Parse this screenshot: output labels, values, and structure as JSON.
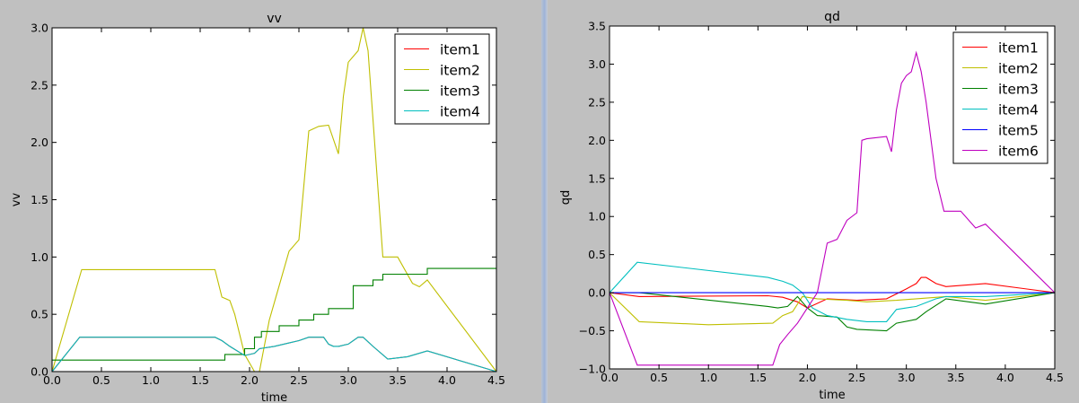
{
  "charts": [
    {
      "type": "line",
      "title": "vv",
      "xlabel": "time",
      "ylabel": "vv",
      "xlim": [
        0,
        4.5
      ],
      "ylim": [
        0,
        3.0
      ],
      "xticks": [
        "0.0",
        "0.5",
        "1.0",
        "1.5",
        "2.0",
        "2.5",
        "3.0",
        "3.5",
        "4.0",
        "4.5"
      ],
      "yticks": [
        "0.0",
        "0.5",
        "1.0",
        "1.5",
        "2.0",
        "2.5",
        "3.0"
      ],
      "legend_position": "top-right",
      "series": [
        {
          "name": "item1",
          "color": "#ff0000",
          "x": [
            0,
            0.28,
            1.65,
            1.72,
            1.8,
            1.95,
            2.05,
            2.1,
            2.25,
            2.5,
            2.6,
            2.75,
            2.8,
            2.85,
            2.9,
            3.0,
            3.1,
            3.15,
            3.25,
            3.4,
            3.6,
            3.8,
            4.5
          ],
          "y": [
            0,
            0.3,
            0.3,
            0.27,
            0.22,
            0.14,
            0.16,
            0.2,
            0.22,
            0.27,
            0.3,
            0.3,
            0.24,
            0.22,
            0.22,
            0.24,
            0.3,
            0.3,
            0.22,
            0.11,
            0.13,
            0.18,
            0
          ]
        },
        {
          "name": "item2",
          "color": "#bfbf00",
          "x": [
            0,
            0.3,
            1.65,
            1.72,
            1.8,
            1.85,
            1.95,
            2.05,
            2.1,
            2.2,
            2.3,
            2.4,
            2.5,
            2.6,
            2.7,
            2.8,
            2.9,
            2.95,
            3.0,
            3.05,
            3.1,
            3.15,
            3.2,
            3.25,
            3.35,
            3.5,
            3.65,
            3.72,
            3.8,
            4.5
          ],
          "y": [
            0,
            0.89,
            0.89,
            0.65,
            0.62,
            0.5,
            0.15,
            0,
            0,
            0.45,
            0.75,
            1.05,
            1.15,
            2.1,
            2.14,
            2.15,
            1.9,
            2.4,
            2.7,
            2.75,
            2.8,
            3.0,
            2.8,
            2.2,
            1.0,
            1.0,
            0.77,
            0.74,
            0.8,
            0
          ]
        },
        {
          "name": "item3",
          "color": "#008000",
          "x": [
            0,
            1.75,
            1.75,
            1.95,
            1.95,
            2.05,
            2.05,
            2.12,
            2.12,
            2.3,
            2.3,
            2.5,
            2.5,
            2.65,
            2.65,
            2.8,
            2.8,
            3.05,
            3.05,
            3.25,
            3.25,
            3.35,
            3.35,
            3.8,
            3.8,
            4.5
          ],
          "y": [
            0.1,
            0.1,
            0.15,
            0.15,
            0.2,
            0.2,
            0.3,
            0.3,
            0.35,
            0.35,
            0.4,
            0.4,
            0.45,
            0.45,
            0.5,
            0.5,
            0.55,
            0.55,
            0.75,
            0.75,
            0.8,
            0.8,
            0.85,
            0.85,
            0.9,
            0.9
          ]
        },
        {
          "name": "item4",
          "color": "#00bfbf",
          "x": [
            0,
            0.28,
            1.65,
            1.72,
            1.8,
            1.95,
            2.05,
            2.1,
            2.25,
            2.5,
            2.6,
            2.75,
            2.8,
            2.85,
            2.9,
            3.0,
            3.1,
            3.15,
            3.25,
            3.4,
            3.6,
            3.8,
            4.5
          ],
          "y": [
            0,
            0.3,
            0.3,
            0.27,
            0.22,
            0.14,
            0.16,
            0.2,
            0.22,
            0.27,
            0.3,
            0.3,
            0.24,
            0.22,
            0.22,
            0.24,
            0.3,
            0.3,
            0.22,
            0.11,
            0.13,
            0.18,
            0
          ]
        }
      ]
    },
    {
      "type": "line",
      "title": "qd",
      "xlabel": "time",
      "ylabel": "qd",
      "xlim": [
        0,
        4.5
      ],
      "ylim": [
        -1.0,
        3.5
      ],
      "xticks": [
        "0.0",
        "0.5",
        "1.0",
        "1.5",
        "2.0",
        "2.5",
        "3.0",
        "3.5",
        "4.0",
        "4.5"
      ],
      "yticks": [
        "−1.0",
        "−0.5",
        "0.0",
        "0.5",
        "1.0",
        "1.5",
        "2.0",
        "2.5",
        "3.0",
        "3.5"
      ],
      "legend_position": "top-right",
      "series": [
        {
          "name": "item1",
          "color": "#ff0000",
          "x": [
            0,
            0.3,
            1.6,
            1.75,
            1.9,
            2.0,
            2.2,
            2.5,
            2.8,
            3.0,
            3.1,
            3.15,
            3.2,
            3.3,
            3.4,
            3.8,
            4.5
          ],
          "y": [
            0,
            -0.05,
            -0.04,
            -0.06,
            -0.12,
            -0.2,
            -0.08,
            -0.1,
            -0.08,
            0.05,
            0.12,
            0.2,
            0.2,
            0.12,
            0.08,
            0.12,
            0
          ]
        },
        {
          "name": "item2",
          "color": "#bfbf00",
          "x": [
            0,
            0.3,
            1.0,
            1.65,
            1.75,
            1.85,
            1.95,
            2.1,
            2.4,
            2.6,
            2.9,
            3.1,
            3.4,
            3.8,
            4.5
          ],
          "y": [
            0,
            -0.38,
            -0.42,
            -0.4,
            -0.3,
            -0.25,
            -0.05,
            -0.08,
            -0.1,
            -0.12,
            -0.1,
            -0.08,
            -0.05,
            -0.1,
            0
          ]
        },
        {
          "name": "item3",
          "color": "#008000",
          "x": [
            0,
            0.3,
            1.6,
            1.7,
            1.8,
            1.9,
            2.0,
            2.1,
            2.3,
            2.4,
            2.5,
            2.8,
            2.9,
            3.1,
            3.2,
            3.4,
            3.8,
            4.5
          ],
          "y": [
            0,
            0,
            -0.18,
            -0.2,
            -0.18,
            -0.05,
            -0.2,
            -0.3,
            -0.32,
            -0.45,
            -0.48,
            -0.5,
            -0.4,
            -0.35,
            -0.25,
            -0.08,
            -0.15,
            0
          ]
        },
        {
          "name": "item4",
          "color": "#00bfbf",
          "x": [
            0,
            0.28,
            1.6,
            1.75,
            1.85,
            1.95,
            2.05,
            2.2,
            2.4,
            2.6,
            2.8,
            2.9,
            3.1,
            3.3,
            3.4,
            3.8,
            4.5
          ],
          "y": [
            0,
            0.4,
            0.2,
            0.15,
            0.1,
            0,
            -0.2,
            -0.3,
            -0.35,
            -0.38,
            -0.38,
            -0.22,
            -0.18,
            -0.08,
            -0.05,
            -0.05,
            0
          ]
        },
        {
          "name": "item5",
          "color": "#0000ff",
          "x": [
            0,
            4.5
          ],
          "y": [
            0,
            0
          ]
        },
        {
          "name": "item6",
          "color": "#bf00bf",
          "x": [
            0,
            0.28,
            1.65,
            1.72,
            1.8,
            1.9,
            2.0,
            2.1,
            2.2,
            2.3,
            2.4,
            2.5,
            2.55,
            2.6,
            2.8,
            2.85,
            2.9,
            2.95,
            3.0,
            3.05,
            3.1,
            3.15,
            3.2,
            3.3,
            3.38,
            3.55,
            3.7,
            3.8,
            4.5
          ],
          "y": [
            0,
            -0.95,
            -0.95,
            -0.68,
            -0.55,
            -0.4,
            -0.2,
            0.0,
            0.65,
            0.7,
            0.95,
            1.05,
            2.0,
            2.02,
            2.05,
            1.85,
            2.4,
            2.75,
            2.85,
            2.9,
            3.15,
            2.9,
            2.5,
            1.5,
            1.07,
            1.07,
            0.85,
            0.9,
            0
          ]
        }
      ]
    }
  ]
}
